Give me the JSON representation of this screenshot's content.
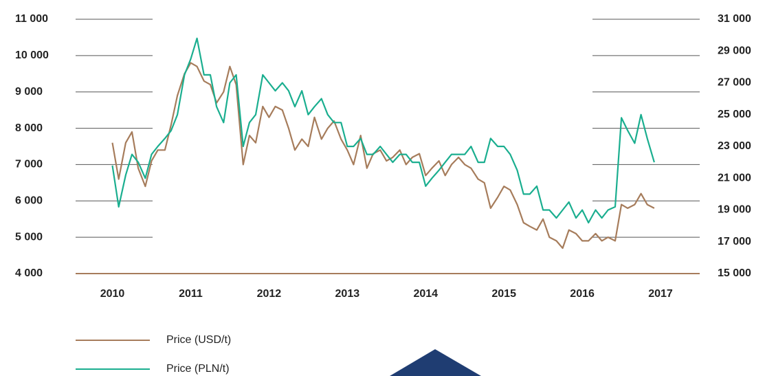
{
  "chart_data": {
    "type": "line",
    "x": [
      2010,
      2010.08,
      2010.17,
      2010.25,
      2010.33,
      2010.42,
      2010.5,
      2010.58,
      2010.67,
      2010.75,
      2010.83,
      2010.92,
      2011,
      2011.08,
      2011.17,
      2011.25,
      2011.33,
      2011.42,
      2011.5,
      2011.58,
      2011.67,
      2011.75,
      2011.83,
      2011.92,
      2012,
      2012.08,
      2012.17,
      2012.25,
      2012.33,
      2012.42,
      2012.5,
      2012.58,
      2012.67,
      2012.75,
      2012.83,
      2012.92,
      2013,
      2013.08,
      2013.17,
      2013.25,
      2013.33,
      2013.42,
      2013.5,
      2013.58,
      2013.67,
      2013.75,
      2013.83,
      2013.92,
      2014,
      2014.08,
      2014.17,
      2014.25,
      2014.33,
      2014.42,
      2014.5,
      2014.58,
      2014.67,
      2014.75,
      2014.83,
      2014.92,
      2015,
      2015.08,
      2015.17,
      2015.25,
      2015.33,
      2015.42,
      2015.5,
      2015.58,
      2015.67,
      2015.75,
      2015.83,
      2015.92,
      2016,
      2016.08,
      2016.17,
      2016.25,
      2016.33,
      2016.42,
      2016.5,
      2016.58,
      2016.67,
      2016.75,
      2016.83,
      2016.92
    ],
    "xlim": [
      2009.53,
      2017.5
    ],
    "xticks": [
      2010,
      2011,
      2012,
      2013,
      2014,
      2015,
      2016,
      2017
    ],
    "ylim": [
      4000,
      11000
    ],
    "yticks": [
      {
        "value": 4000,
        "label": "4 000"
      },
      {
        "value": 5000,
        "label": "5 000"
      },
      {
        "value": 6000,
        "label": "6 000"
      },
      {
        "value": 7000,
        "label": "7 000"
      },
      {
        "value": 8000,
        "label": "8 000"
      },
      {
        "value": 9000,
        "label": "9 000"
      },
      {
        "value": 10000,
        "label": "10 000"
      },
      {
        "value": 11000,
        "label": "11 000"
      }
    ],
    "y2lim": [
      15000,
      31000
    ],
    "y2ticks": [
      {
        "value": 15000,
        "label": "15 000"
      },
      {
        "value": 17000,
        "label": "17 000"
      },
      {
        "value": 19000,
        "label": "19 000"
      },
      {
        "value": 21000,
        "label": "21 000"
      },
      {
        "value": 23000,
        "label": "23 000"
      },
      {
        "value": 25000,
        "label": "25 000"
      },
      {
        "value": 27000,
        "label": "27 000"
      },
      {
        "value": 29000,
        "label": "29 000"
      },
      {
        "value": 31000,
        "label": "31 000"
      }
    ],
    "grid": true,
    "series": [
      {
        "name": "Price (USD/t)",
        "color": "#a67c5b",
        "values": [
          7600,
          6600,
          7600,
          7900,
          6900,
          6400,
          7100,
          7400,
          7400,
          8100,
          8900,
          9500,
          9800,
          9700,
          9300,
          9200,
          8700,
          9000,
          9700,
          9200,
          7000,
          7800,
          7600,
          8600,
          8300,
          8600,
          8500,
          8000,
          7400,
          7700,
          7500,
          8300,
          7700,
          8000,
          8200,
          7700,
          7400,
          7000,
          7800,
          6900,
          7300,
          7400,
          7100,
          7200,
          7400,
          7000,
          7200,
          7300,
          6700,
          6900,
          7100,
          6700,
          7000,
          7200,
          7000,
          6900,
          6600,
          6500,
          5800,
          6100,
          6400,
          6300,
          5900,
          5400,
          5300,
          5200,
          5500,
          5000,
          4900,
          4700,
          5200,
          5100,
          4900,
          4900,
          5100,
          4900,
          5000,
          4900,
          5900,
          5800,
          5900,
          6200,
          5900,
          5800
        ]
      },
      {
        "name": "Price (PLN/t)",
        "color": "#1aae8f",
        "axis": "y2",
        "values": [
          21800,
          19200,
          21200,
          22500,
          22000,
          21000,
          22500,
          23000,
          23500,
          24000,
          25000,
          27500,
          28500,
          29800,
          27500,
          27500,
          25500,
          24500,
          27000,
          27500,
          23000,
          24500,
          25000,
          27500,
          27000,
          26500,
          27000,
          26500,
          25500,
          26500,
          25000,
          25500,
          26000,
          25000,
          24500,
          24500,
          23000,
          23000,
          23500,
          22500,
          22500,
          23000,
          22500,
          22000,
          22500,
          22500,
          22000,
          22000,
          20500,
          21000,
          21500,
          22000,
          22500,
          22500,
          22500,
          23000,
          22000,
          22000,
          23500,
          23000,
          23000,
          22500,
          21500,
          20000,
          20000,
          20500,
          19000,
          19000,
          18500,
          19000,
          19500,
          18500,
          19000,
          18200,
          19000,
          18500,
          19000,
          19200,
          24800,
          24000,
          23200,
          25000,
          23500,
          22000
        ]
      }
    ]
  }
}
